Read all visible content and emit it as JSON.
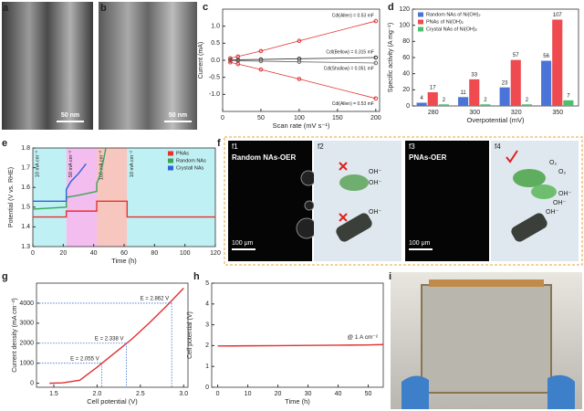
{
  "figure": {
    "panel_labels": [
      "a",
      "b",
      "c",
      "d",
      "e",
      "f",
      "g",
      "h",
      "i"
    ],
    "a_scale": "50 nm",
    "b_scale": "50 nm",
    "f1": {
      "tag": "f1",
      "title": "Random NAs-OER",
      "scale": "100 μm"
    },
    "f2": {
      "tag": "f2",
      "labels": [
        "OH⁻",
        "OH⁻",
        "OH⁻"
      ]
    },
    "f3": {
      "tag": "f3",
      "title": "PNAs-OER",
      "scale": "100 μm"
    },
    "f4": {
      "tag": "f4",
      "labels": [
        "O₂",
        "O₂",
        "OH⁻",
        "OH⁻",
        "OH⁻"
      ]
    }
  },
  "chart_data": [
    {
      "type": "scatter",
      "xlabel": "Scan rate (mV s⁻¹)",
      "ylabel": "Current (mA)",
      "xlim": [
        0,
        205
      ],
      "xticks": [
        0,
        50,
        100,
        150,
        200
      ],
      "ylim": [
        -1.5,
        1.5
      ],
      "yticks": [
        {
          "value": -1,
          "label": "-1.0"
        },
        -0.5,
        {
          "value": 0,
          "label": "0.0"
        },
        0.5,
        {
          "value": 1,
          "label": "1.0"
        }
      ],
      "series": [
        {
          "name": "Cdl(Allen) = 0.53 mF",
          "color": "#e03030",
          "x": [
            10,
            20,
            50,
            100,
            200
          ],
          "values": [
            0.06,
            0.11,
            0.27,
            0.57,
            1.15
          ]
        },
        {
          "name": "Cdl(Bellow) = 0.315 mF",
          "color": "#333333",
          "x": [
            10,
            20,
            50,
            100,
            200
          ],
          "values": [
            0.01,
            0.015,
            0.025,
            0.045,
            0.08
          ]
        },
        {
          "name": "Cdl(Shallow) = 0.051 mF",
          "color": "#666666",
          "x": [
            10,
            20,
            50,
            100,
            200
          ],
          "values": [
            -0.01,
            -0.015,
            -0.025,
            -0.045,
            -0.08
          ]
        },
        {
          "name": "Cdl(Allen) = 0.53 mF",
          "color": "#e03030",
          "x": [
            10,
            20,
            50,
            100,
            200
          ],
          "values": [
            -0.06,
            -0.11,
            -0.27,
            -0.55,
            -1.12
          ]
        }
      ]
    },
    {
      "type": "bar",
      "xlabel": "Overpotential (mV)",
      "ylabel": "Specific activity (A mg⁻¹)",
      "categories": [
        "280",
        "300",
        "320",
        "350"
      ],
      "ylim": [
        0,
        120
      ],
      "yticks": [
        0,
        20,
        40,
        60,
        80,
        100,
        120
      ],
      "legend": "upper left",
      "series": [
        {
          "name": "Random NAs of Ni(OH)₂",
          "color": "#4a74d8",
          "values": [
            4,
            11,
            23,
            56
          ]
        },
        {
          "name": "PNAs of Ni(OH)₂",
          "color": "#ee4a4f",
          "values": [
            17,
            33,
            57,
            107
          ]
        },
        {
          "name": "Crystal NAs of Ni(OH)₂",
          "color": "#4cc06e",
          "values": [
            2,
            2,
            2,
            7
          ]
        }
      ]
    },
    {
      "type": "line",
      "xlabel": "Time (h)",
      "ylabel": "Potential (V vs. RHE)",
      "legend": "upper right",
      "xlim": [
        0,
        120
      ],
      "xticks": [
        0,
        20,
        40,
        60,
        80,
        100,
        120
      ],
      "ylim": [
        1.3,
        1.8
      ],
      "yticks": [
        1.3,
        1.4,
        1.5,
        1.6,
        1.7,
        1.8
      ],
      "regions": [
        {
          "x": [
            0,
            22
          ],
          "color": "#bff0f3",
          "label": "10 mA cm⁻²"
        },
        {
          "x": [
            22,
            42
          ],
          "color": "#f3bdef",
          "label": "50 mA cm⁻²"
        },
        {
          "x": [
            42,
            62
          ],
          "color": "#f6c6bf",
          "label": "100 mA cm⁻²"
        },
        {
          "x": [
            62,
            120
          ],
          "color": "#bff0f3",
          "label": "10 mA cm⁻²"
        }
      ],
      "series": [
        {
          "name": "PNAs",
          "color": "#e8322f",
          "x": [
            0,
            22,
            22,
            42,
            42,
            62,
            62,
            120
          ],
          "values": [
            1.45,
            1.45,
            1.48,
            1.48,
            1.53,
            1.53,
            1.45,
            1.45
          ]
        },
        {
          "name": "Random NAs",
          "color": "#3aa655",
          "x": [
            0,
            22,
            22,
            30,
            42,
            42,
            44,
            46,
            48
          ],
          "values": [
            1.49,
            1.5,
            1.55,
            1.56,
            1.58,
            1.62,
            1.66,
            1.72,
            1.8
          ]
        },
        {
          "name": "Crystall NAs",
          "color": "#2f63d6",
          "x": [
            0,
            22,
            22,
            25,
            30,
            35
          ],
          "values": [
            1.53,
            1.53,
            1.59,
            1.63,
            1.67,
            1.72
          ]
        }
      ]
    },
    {
      "type": "line",
      "xlabel": "Cell potential (V)",
      "ylabel": "Current density (mA cm⁻²)",
      "xlim": [
        1.3,
        3.05
      ],
      "xticks": [
        1.5,
        {
          "value": 2,
          "label": "2.0"
        },
        2.5,
        {
          "value": 3,
          "label": "3.0"
        }
      ],
      "ylim": [
        -200,
        5000
      ],
      "yticks": [
        0,
        1000,
        2000,
        3000,
        4000
      ],
      "markers": [
        {
          "x": 2.055,
          "y": 1000,
          "label": "E = 2.055 V"
        },
        {
          "x": 2.338,
          "y": 2000,
          "label": "E = 2.338 V"
        },
        {
          "x": 2.862,
          "y": 4000,
          "label": "E = 2.862 V"
        }
      ],
      "series": [
        {
          "color": "#e03030",
          "x": [
            1.45,
            1.6,
            1.8,
            2.0,
            2.2,
            2.4,
            2.6,
            2.8,
            3.0
          ],
          "values": [
            0,
            20,
            150,
            800,
            1500,
            2200,
            3000,
            3850,
            4750
          ]
        }
      ]
    },
    {
      "type": "line",
      "xlabel": "Time (h)",
      "ylabel": "Cell potential (V)",
      "annotation": "@ 1 A cm⁻²",
      "xlim": [
        -2,
        55
      ],
      "xticks": [
        0,
        10,
        20,
        30,
        40,
        50
      ],
      "ylim": [
        0,
        5
      ],
      "yticks": [
        0,
        1,
        2,
        3,
        4,
        5
      ],
      "series": [
        {
          "color": "#e03030",
          "x": [
            0,
            10,
            20,
            30,
            40,
            50,
            55
          ],
          "values": [
            1.98,
            1.99,
            2.0,
            2.01,
            2.02,
            2.03,
            2.05
          ]
        }
      ]
    }
  ]
}
